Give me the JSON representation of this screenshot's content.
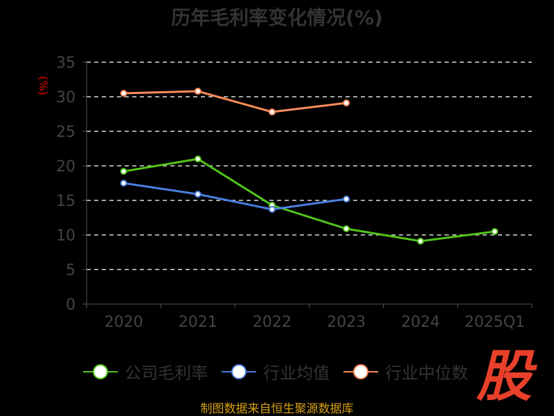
{
  "chart_data": {
    "type": "line",
    "title": "历年毛利率变化情况(%)",
    "ylabel": "(%)",
    "xlabel": "",
    "categories": [
      "2020",
      "2021",
      "2022",
      "2023",
      "2024",
      "2025Q1"
    ],
    "ylim": [
      0,
      35
    ],
    "yticks": [
      0,
      5,
      10,
      15,
      20,
      25,
      30,
      35
    ],
    "grid": true,
    "legend_position": "bottom",
    "series": [
      {
        "name": "公司毛利率",
        "color": "#52c41a",
        "values": [
          19.2,
          21.0,
          14.3,
          10.9,
          9.1,
          10.5
        ]
      },
      {
        "name": "行业均值",
        "color": "#4a7fe0",
        "values": [
          17.5,
          15.9,
          13.7,
          15.2,
          null,
          null
        ]
      },
      {
        "name": "行业中位数",
        "color": "#ff8c5a",
        "values": [
          30.5,
          30.8,
          27.8,
          29.1,
          null,
          null
        ]
      }
    ]
  },
  "footer": {
    "source": "制图数据来自恒生聚源数据库",
    "logo": "股"
  }
}
